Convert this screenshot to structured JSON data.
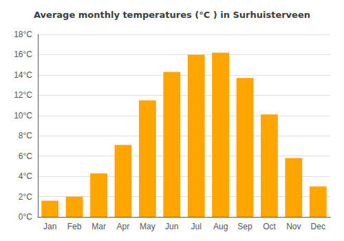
{
  "chart_data": {
    "type": "bar",
    "title": "Average monthly temperatures (°C ) in Surhuisterveen",
    "categories": [
      "Jan",
      "Feb",
      "Mar",
      "Apr",
      "May",
      "Jun",
      "Jul",
      "Aug",
      "Sep",
      "Oct",
      "Nov",
      "Dec"
    ],
    "values": [
      1.6,
      2.0,
      4.3,
      7.1,
      11.5,
      14.3,
      16.0,
      16.2,
      13.7,
      10.1,
      5.8,
      3.0
    ],
    "color": "#FFA500",
    "ylim": [
      0,
      18
    ],
    "yticks": [
      {
        "value": 0,
        "label": "0°C"
      },
      {
        "value": 2,
        "label": "2°C"
      },
      {
        "value": 4,
        "label": "4°C"
      },
      {
        "value": 6,
        "label": "6°C"
      },
      {
        "value": 8,
        "label": "8°C"
      },
      {
        "value": 10,
        "label": "10°C"
      },
      {
        "value": 12,
        "label": "12°C"
      },
      {
        "value": 14,
        "label": "14°C"
      },
      {
        "value": 16,
        "label": "16°C"
      },
      {
        "value": 18,
        "label": "18°C"
      }
    ],
    "grid": true
  }
}
